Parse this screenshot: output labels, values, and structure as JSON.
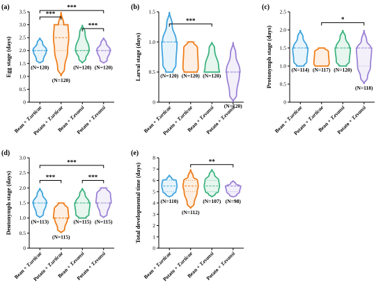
{
  "colors": {
    "bean_turticae": "#3ea3dc",
    "potato_turticae": "#ef7d1a",
    "bean_tevansi": "#3db37e",
    "potato_tevansi": "#9b82d6"
  },
  "chart_data": [
    {
      "type": "violin",
      "label": "(a)",
      "ylabel": "Egg stage (days)",
      "ylim": [
        0,
        3.5
      ],
      "yticks": [
        "0",
        "0.5",
        "1.0",
        "1.5",
        "2.0",
        "2.5",
        "3.0",
        "3.5"
      ],
      "categories": [
        "Bean + T.urticae",
        "Potato + T.urticae",
        "Bean + T.evansi",
        "Potato + T.evansi"
      ],
      "series": [
        {
          "min": 1.5,
          "max": 2.5,
          "median": 2.0,
          "q1": 2.0,
          "q3": 2.0,
          "n": "(N=120)"
        },
        {
          "min": 1.0,
          "max": 3.5,
          "median": 2.5,
          "q1": 2.0,
          "q3": 3.0,
          "n": "(N=120)"
        },
        {
          "min": 1.5,
          "max": 3.0,
          "median": 2.0,
          "q1": 2.0,
          "q3": 2.0,
          "n": "(N=120)"
        },
        {
          "min": 1.5,
          "max": 2.5,
          "median": 2.0,
          "q1": 2.0,
          "q3": 2.0,
          "n": "(N=120)"
        }
      ],
      "significance": [
        {
          "from": 0,
          "to": 1,
          "label": "***",
          "y": 3.3
        },
        {
          "from": 0,
          "to": 3,
          "label": "***",
          "y": 3.55
        },
        {
          "from": 2,
          "to": 3,
          "label": "***",
          "y": 2.85
        }
      ]
    },
    {
      "type": "violin",
      "label": "(b)",
      "ylabel": "Larval stage (days)",
      "ylim": [
        0,
        1.5
      ],
      "yticks": [
        "0",
        "0.5",
        "1.0",
        "1.5"
      ],
      "categories": [
        "Bean + T.urticae",
        "Potato + T.urticae",
        "Bean + T.evansi",
        "Potato + T.evansi"
      ],
      "series": [
        {
          "min": 0.5,
          "max": 1.5,
          "median": 1.0,
          "q1": 0.5,
          "q3": 1.0,
          "n": "(N=120)"
        },
        {
          "min": 0.5,
          "max": 1.0,
          "median": 0.5,
          "q1": 0.5,
          "q3": 1.0,
          "n": "(N=120)"
        },
        {
          "min": 0.5,
          "max": 1.0,
          "median": 0.5,
          "q1": 0.5,
          "q3": 0.5,
          "n": "(N=120)"
        },
        {
          "min": 0.0,
          "max": 1.0,
          "median": 0.5,
          "q1": 0.5,
          "q3": 0.5,
          "n": "(N=120)"
        }
      ],
      "significance": [
        {
          "from": 0,
          "to": 2,
          "label": "***",
          "y": 1.3
        }
      ]
    },
    {
      "type": "violin",
      "label": "(c)",
      "ylabel": "Protonymph stage (days)",
      "ylim": [
        0,
        2.5
      ],
      "yticks": [
        "0",
        "0.5",
        "1.0",
        "1.5",
        "2.0",
        "2.5"
      ],
      "categories": [
        "Bean + T.urticae",
        "Potato + T.urticae",
        "Bean + T.evansi",
        "Potato + T.evansi"
      ],
      "series": [
        {
          "min": 1.0,
          "max": 2.0,
          "median": 1.5,
          "q1": 1.0,
          "q3": 1.5,
          "n": "(N=114)"
        },
        {
          "min": 1.0,
          "max": 1.5,
          "median": 1.0,
          "q1": 1.0,
          "q3": 1.5,
          "n": "(N=117)"
        },
        {
          "min": 1.0,
          "max": 2.0,
          "median": 1.5,
          "q1": 1.0,
          "q3": 1.5,
          "n": "(N=120)"
        },
        {
          "min": 0.5,
          "max": 2.0,
          "median": 1.5,
          "q1": 1.0,
          "q3": 1.5,
          "n": "(N=118)"
        }
      ],
      "significance": [
        {
          "from": 1,
          "to": 3,
          "label": "*",
          "y": 2.2
        }
      ]
    },
    {
      "type": "violin",
      "label": "(d)",
      "ylabel": "Deutonymph stage (days)",
      "ylim": [
        0,
        3.0
      ],
      "yticks": [
        "0",
        "0.5",
        "1.0",
        "1.5",
        "2.0",
        "2.5",
        "3.0"
      ],
      "categories": [
        "Bean + T.urticae",
        "Potato + T.urticae",
        "Bean + T.evansi",
        "Potato + T.evansi"
      ],
      "series": [
        {
          "min": 1.0,
          "max": 2.0,
          "median": 1.5,
          "q1": 1.5,
          "q3": 1.5,
          "n": "(N=113)"
        },
        {
          "min": 0.5,
          "max": 1.5,
          "median": 1.0,
          "q1": 1.0,
          "q3": 1.5,
          "n": "(N=115)"
        },
        {
          "min": 1.0,
          "max": 2.0,
          "median": 1.5,
          "q1": 1.0,
          "q3": 1.5,
          "n": "(N=115)"
        },
        {
          "min": 1.0,
          "max": 2.0,
          "median": 1.5,
          "q1": 1.5,
          "q3": 2.0,
          "n": "(N=115)"
        }
      ],
      "significance": [
        {
          "from": 0,
          "to": 1,
          "label": "***",
          "y": 2.25
        },
        {
          "from": 0,
          "to": 3,
          "label": "***",
          "y": 2.75
        },
        {
          "from": 2,
          "to": 3,
          "label": "***",
          "y": 2.25
        }
      ]
    },
    {
      "type": "violin",
      "label": "(e)",
      "ylabel": "Total developmental time (days)",
      "ylim": [
        0,
        8
      ],
      "yticks": [
        "0",
        "1",
        "2",
        "3",
        "4",
        "5",
        "6",
        "7",
        "8"
      ],
      "categories": [
        "Bean + T.urticae",
        "Potato + T.urticae",
        "Bean + T.evansi",
        "Potato + T.evansi"
      ],
      "series": [
        {
          "min": 4.5,
          "max": 6.5,
          "median": 5.5,
          "q1": 5.0,
          "q3": 6.0,
          "n": "(N=110)"
        },
        {
          "min": 3.5,
          "max": 7.0,
          "median": 5.5,
          "q1": 5.0,
          "q3": 6.0,
          "n": "(N=112)"
        },
        {
          "min": 4.5,
          "max": 7.0,
          "median": 5.5,
          "q1": 5.0,
          "q3": 6.0,
          "n": "(N=107)"
        },
        {
          "min": 4.5,
          "max": 6.0,
          "median": 5.5,
          "q1": 5.0,
          "q3": 5.5,
          "n": "(N=98)"
        }
      ],
      "significance": [
        {
          "from": 1,
          "to": 3,
          "label": "**",
          "y": 7.4
        }
      ]
    }
  ]
}
